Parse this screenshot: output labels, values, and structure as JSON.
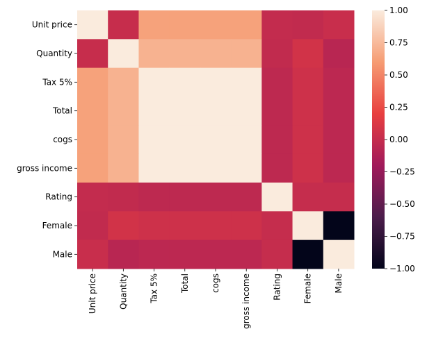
{
  "chart_data": {
    "type": "heatmap",
    "title": "",
    "xlabel": "",
    "ylabel": "",
    "row_labels": [
      "Unit price",
      "Quantity",
      "Tax 5%",
      "Total",
      "cogs",
      "gross income",
      "Rating",
      "Female",
      "Male"
    ],
    "col_labels": [
      "Unit price",
      "Quantity",
      "Tax 5%",
      "Total",
      "cogs",
      "gross income",
      "Rating",
      "Female",
      "Male"
    ],
    "values": [
      [
        1.0,
        0.01,
        0.63,
        0.63,
        0.63,
        0.63,
        -0.01,
        -0.02,
        0.02
      ],
      [
        0.01,
        1.0,
        0.71,
        0.71,
        0.71,
        0.71,
        -0.02,
        0.07,
        -0.07
      ],
      [
        0.63,
        0.71,
        1.0,
        1.0,
        1.0,
        1.0,
        -0.04,
        0.05,
        -0.05
      ],
      [
        0.63,
        0.71,
        1.0,
        1.0,
        1.0,
        1.0,
        -0.04,
        0.05,
        -0.05
      ],
      [
        0.63,
        0.71,
        1.0,
        1.0,
        1.0,
        1.0,
        -0.04,
        0.05,
        -0.05
      ],
      [
        0.63,
        0.71,
        1.0,
        1.0,
        1.0,
        1.0,
        -0.04,
        0.05,
        -0.05
      ],
      [
        -0.01,
        -0.02,
        -0.04,
        -0.04,
        -0.04,
        -0.04,
        1.0,
        -0.0,
        0.0
      ],
      [
        -0.02,
        0.07,
        0.05,
        0.05,
        0.05,
        0.05,
        -0.0,
        1.0,
        -1.0
      ],
      [
        0.02,
        -0.07,
        -0.05,
        -0.05,
        -0.05,
        -0.05,
        0.0,
        -1.0,
        1.0
      ]
    ],
    "color_range": [
      -1.0,
      1.0
    ],
    "colorbar": {
      "ticks": [
        1.0,
        0.75,
        0.5,
        0.25,
        0.0,
        -0.25,
        -0.5,
        -0.75,
        -1.0
      ],
      "tick_labels": [
        "1.00",
        "0.75",
        "0.50",
        "0.25",
        "0.00",
        "−0.25",
        "−0.50",
        "−0.75",
        "−1.00"
      ]
    },
    "colormap": [
      "#03051a",
      "#4c1d4b",
      "#a11a5b",
      "#e83f3f",
      "#f69c73",
      "#faebdd"
    ],
    "grid": false,
    "legend": "colorbar-right"
  }
}
